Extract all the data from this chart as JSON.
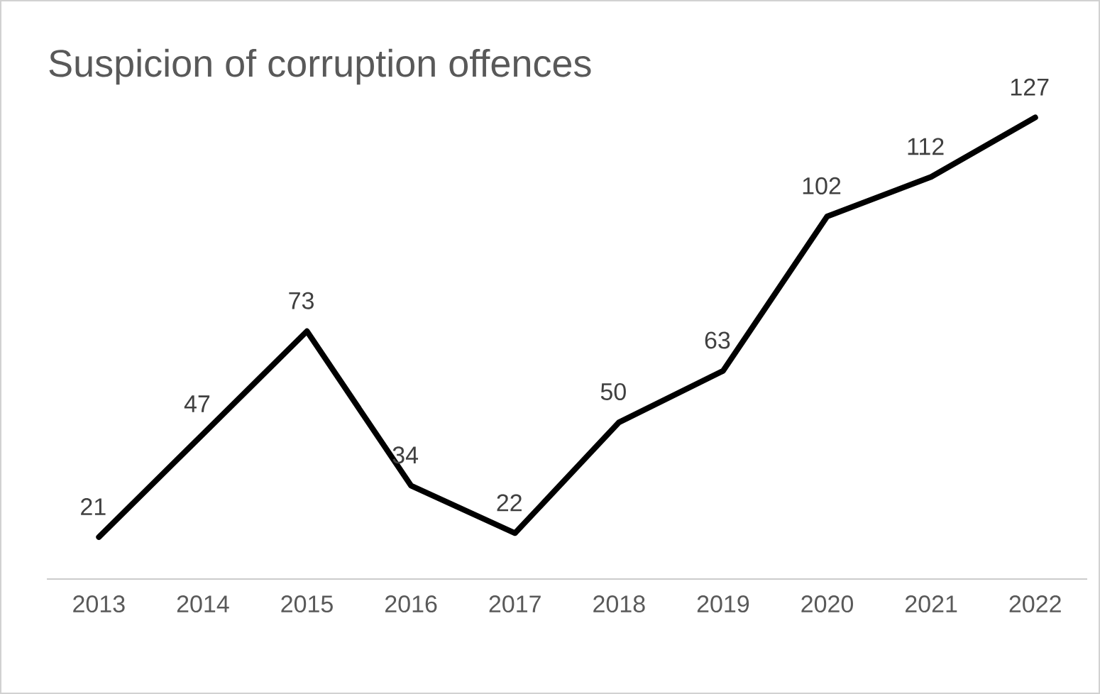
{
  "chart_data": {
    "type": "line",
    "title": "Suspicion of corruption offences",
    "categories": [
      "2013",
      "2014",
      "2015",
      "2016",
      "2017",
      "2018",
      "2019",
      "2020",
      "2021",
      "2022"
    ],
    "values": [
      21,
      47,
      73,
      34,
      22,
      50,
      63,
      102,
      112,
      127
    ],
    "color": "#000000",
    "data_labels": true,
    "tick_labels": "x"
  }
}
